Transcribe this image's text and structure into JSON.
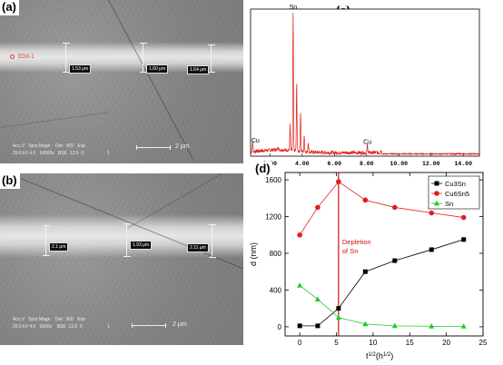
{
  "figure": {
    "panels": {
      "a": "(a)",
      "b": "(b)",
      "c": "(c)",
      "d": "(d)"
    }
  },
  "sem_a": {
    "edx_label": "EDX-1",
    "measurements": [
      "1.53 μm",
      "1.60 μm",
      "1.64 μm"
    ],
    "header_line1": "Acc.V   Spot Magn    Det   WD   Exp",
    "header_line2": "20.0 kV 4.0   10000x   BSE  12.9  0",
    "header_extra": "1",
    "scale_label": "2 μm"
  },
  "sem_b": {
    "measurements": [
      "2.1 μm",
      "1.93 μm",
      "2.11 μm"
    ],
    "header_line1": "Acc.V   Spot Magn    Det   WD   Exp",
    "header_line2": "20.0 kV 4.0   9000x    BSE  12.9  0",
    "header_extra": "1",
    "scale_label": "2 μm"
  },
  "chart_data": [
    {
      "type": "line",
      "subtype": "edx-spectrum",
      "x_ticks": [
        "2.00",
        "4.00",
        "6.00",
        "8.00",
        "10.00",
        "12.00",
        "14.00"
      ],
      "xlim": [
        0.8,
        15.0
      ],
      "peak_labels": [
        {
          "text": "Sn",
          "x": 3.44
        },
        {
          "text": "Cu",
          "x": 0.93
        },
        {
          "text": "Cu",
          "x": 8.05
        }
      ],
      "peaks": [
        {
          "x": 3.44,
          "h": 1.0
        },
        {
          "x": 3.66,
          "h": 0.48
        },
        {
          "x": 3.9,
          "h": 0.28
        },
        {
          "x": 3.25,
          "h": 0.18
        },
        {
          "x": 4.13,
          "h": 0.12
        },
        {
          "x": 4.38,
          "h": 0.07
        },
        {
          "x": 0.93,
          "h": 0.07
        },
        {
          "x": 8.05,
          "h": 0.06
        },
        {
          "x": 8.9,
          "h": 0.02
        },
        {
          "x": 2.5,
          "h": 0.03
        }
      ],
      "line_color": "#e0201b"
    },
    {
      "type": "line",
      "xlabel_main": "t",
      "xlabel_sup1": "1/2",
      "xlabel_mid": "(h",
      "xlabel_sup2": "1/2",
      "xlabel_end": ")",
      "ylabel": "d (nm)",
      "xlim": [
        -2,
        25
      ],
      "ylim": [
        -100,
        1680
      ],
      "x_ticks": [
        0,
        5,
        10,
        15,
        20,
        25
      ],
      "y_ticks": [
        0,
        400,
        800,
        1200,
        1600
      ],
      "legend_position": "top-right",
      "series": [
        {
          "name": "Cu3Sn",
          "color": "#000000",
          "marker": "square",
          "x": [
            0,
            2.45,
            5.29,
            8.94,
            12.96,
            17.97,
            22.36
          ],
          "y": [
            10,
            10,
            200,
            600,
            720,
            840,
            950
          ]
        },
        {
          "name": "Cu6Sn5",
          "color": "#e0201b",
          "marker": "circle",
          "x": [
            0,
            2.45,
            5.29,
            8.94,
            12.96,
            17.97,
            22.36
          ],
          "y": [
            1000,
            1300,
            1580,
            1380,
            1300,
            1240,
            1190
          ]
        },
        {
          "name": "Sn",
          "color": "#22cc22",
          "marker": "triangle",
          "x": [
            0,
            2.45,
            5.29,
            8.94,
            12.96,
            17.97,
            22.36
          ],
          "y": [
            450,
            300,
            100,
            30,
            10,
            5,
            5
          ]
        }
      ],
      "vline": {
        "x": 5.29,
        "color": "#cc1111"
      },
      "annotation": {
        "line1": "Depletion",
        "line2": "of Sn",
        "color": "#cc1111"
      }
    }
  ]
}
